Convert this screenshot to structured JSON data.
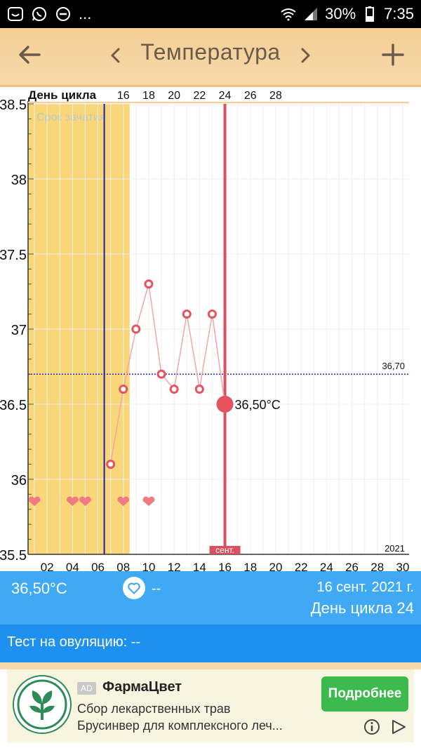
{
  "status_bar": {
    "battery": "30%",
    "time": "7:35",
    "more": "..."
  },
  "header": {
    "title": "Температура"
  },
  "chart_data": {
    "type": "line",
    "top_axis_label": "День цикла",
    "cycle_day_ticks": [
      "16",
      "18",
      "20",
      "22",
      "24",
      "26",
      "28"
    ],
    "x_tick_labels": [
      "02",
      "04",
      "06",
      "08",
      "10",
      "12",
      "14",
      "16",
      "18",
      "20",
      "22",
      "24",
      "26",
      "28",
      "30"
    ],
    "xlim": [
      1,
      30
    ],
    "ylim": [
      35.5,
      38.5
    ],
    "y_tick_labels": [
      "35.5",
      "36",
      "36.5",
      "37",
      "37.5",
      "38",
      "38.5"
    ],
    "y_ticks": [
      35.5,
      36,
      36.5,
      37,
      37.5,
      38,
      38.5
    ],
    "series": [
      {
        "x": [
          7,
          8,
          9,
          10,
          11,
          12,
          13,
          14,
          15,
          16
        ],
        "y": [
          36.1,
          36.6,
          37.0,
          37.3,
          36.7,
          36.6,
          37.1,
          36.6,
          37.1,
          36.5
        ]
      }
    ],
    "hearts_days": [
      1,
      4,
      5,
      8,
      10
    ],
    "fertile_window": {
      "from": 1,
      "to": 8,
      "label": "Срок зачатия"
    },
    "ovulation_day": 6,
    "selected": {
      "day": 16,
      "value": 36.5,
      "label": "36,50°C"
    },
    "selected_month_label": "сент.",
    "coverline": {
      "value": 36.7,
      "label": "36,70"
    },
    "year_label": "2021",
    "colors": {
      "fertile": "#f9d778",
      "point": "#e5535f",
      "line": "#f2a5ab",
      "coverline": "#2b2bb8",
      "ovulation": "#1f1fa8",
      "selected_line": "#d9505f"
    }
  },
  "info": {
    "temp": "36,50°C",
    "heart_value": "--",
    "date": "16 сент. 2021 г.",
    "cycle_day": "День цикла 24"
  },
  "ovulation_test": {
    "label": "Тест на овуляцию: --"
  },
  "ad": {
    "badge": "AD",
    "title": "ФармаЦвет",
    "line1": "Сбор лекарственных трав",
    "line2": "Брусинвер для комплексного леч...",
    "cta": "Подробнее"
  }
}
